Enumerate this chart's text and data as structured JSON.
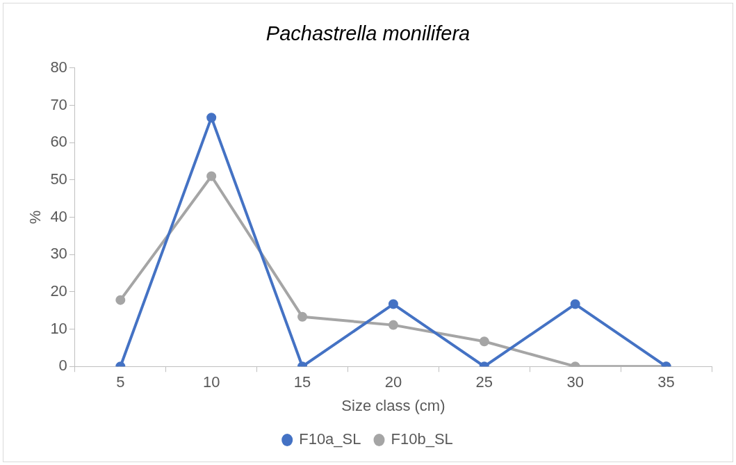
{
  "chart_data": {
    "type": "line",
    "title": "Pachastrella monilifera",
    "xlabel": "Size class (cm)",
    "ylabel": "%",
    "categories": [
      "5",
      "10",
      "15",
      "20",
      "25",
      "30",
      "35"
    ],
    "series": [
      {
        "name": "F10a_SL",
        "color": "#4472c4",
        "values": [
          0,
          66.7,
          0,
          16.7,
          0,
          16.7,
          0
        ]
      },
      {
        "name": "F10b_SL",
        "color": "#a5a5a5",
        "values": [
          17.8,
          51,
          13.3,
          11.1,
          6.7,
          0,
          0
        ]
      }
    ],
    "ylim": [
      0,
      80
    ],
    "yticks": [
      0,
      10,
      20,
      30,
      40,
      50,
      60,
      70,
      80
    ],
    "legend": "bottom",
    "marker": "circle"
  }
}
